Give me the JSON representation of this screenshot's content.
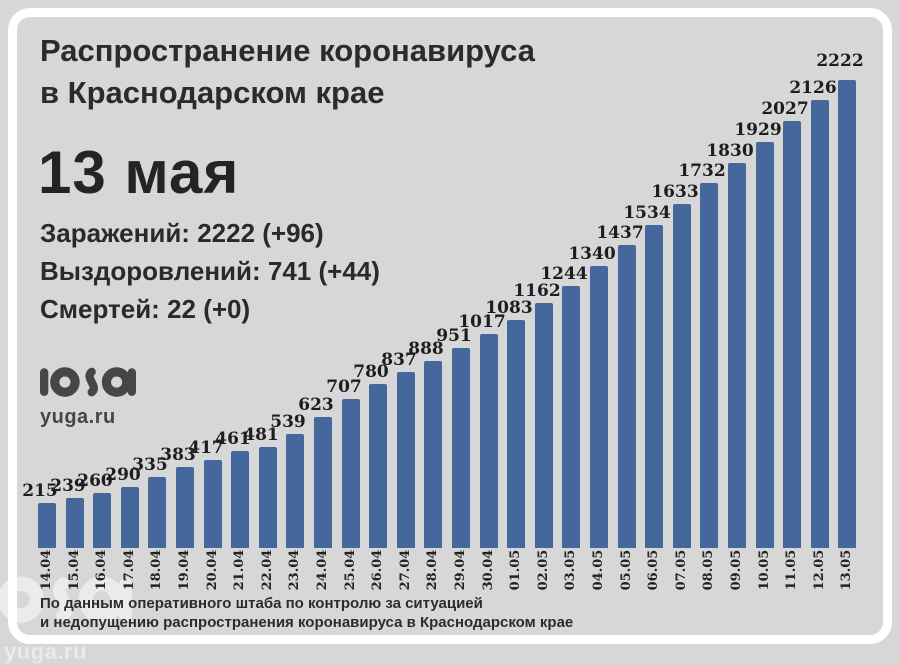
{
  "header": {
    "title_line1": "Распространение коронавируса",
    "title_line2": "в Краснодарском крае",
    "date_heading": "13 мая"
  },
  "stats": {
    "infections": "Заражений: 2222 (+96)",
    "recoveries": "Выздоровлений: 741 (+44)",
    "deaths": "Смертей: 22 (+0)"
  },
  "logo": {
    "site": "yuga.ru"
  },
  "footer": {
    "line1": "По данным оперативного штаба по контролю за ситуацией",
    "line2": "и недопущению распространения коронавируса в Краснодарском крае"
  },
  "chart_data": {
    "type": "bar",
    "title": "Распространение коронавируса в Краснодарском крае",
    "categories": [
      "14.04",
      "15.04",
      "16.04",
      "17.04",
      "18.04",
      "19.04",
      "20.04",
      "21.04",
      "22.04",
      "23.04",
      "24.04",
      "25.04",
      "26.04",
      "27.04",
      "28.04",
      "29.04",
      "30.04",
      "01.05",
      "02.05",
      "03.05",
      "04.05",
      "05.05",
      "06.05",
      "07.05",
      "08.05",
      "09.05",
      "10.05",
      "11.05",
      "12.05",
      "13.05"
    ],
    "values": [
      215,
      239,
      260,
      290,
      335,
      383,
      417,
      461,
      481,
      539,
      623,
      707,
      780,
      837,
      888,
      951,
      1017,
      1083,
      1162,
      1244,
      1340,
      1437,
      1534,
      1633,
      1732,
      1830,
      1929,
      2027,
      2126,
      2222
    ],
    "xlabel": "",
    "ylabel": "",
    "ylim": [
      0,
      2222
    ],
    "grid": false,
    "legend": false,
    "value_labels": true,
    "bar_color": "#44689b",
    "background_color": "#d7d7d8",
    "label_color": "#1d1d1f"
  }
}
